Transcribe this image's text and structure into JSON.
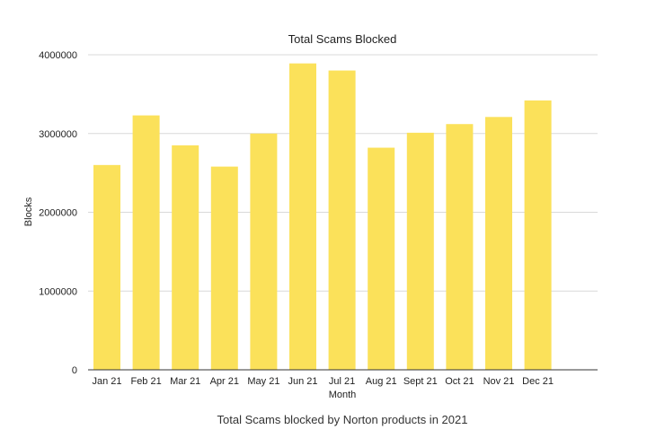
{
  "chart_data": {
    "type": "bar",
    "title": "Total Scams Blocked",
    "xlabel": "Month",
    "ylabel": "Blocks",
    "caption": "Total Scams blocked by Norton products in 2021",
    "categories": [
      "Jan 21",
      "Feb 21",
      "Mar 21",
      "Apr 21",
      "May 21",
      "Jun 21",
      "Jul 21",
      "Aug 21",
      "Sept 21",
      "Oct 21",
      "Nov 21",
      "Dec 21"
    ],
    "values": [
      2600000,
      3230000,
      2850000,
      2580000,
      3000000,
      3890000,
      3800000,
      2820000,
      3010000,
      3120000,
      3210000,
      3420000
    ],
    "yticks": [
      "0",
      "1000000",
      "2000000",
      "3000000",
      "4000000"
    ],
    "ylim": [
      0,
      4000000
    ],
    "grid": true,
    "legend": "none",
    "colors": {
      "bar": "#FBE15A",
      "grid": "#D9D9D9",
      "axis": "#333333"
    }
  }
}
